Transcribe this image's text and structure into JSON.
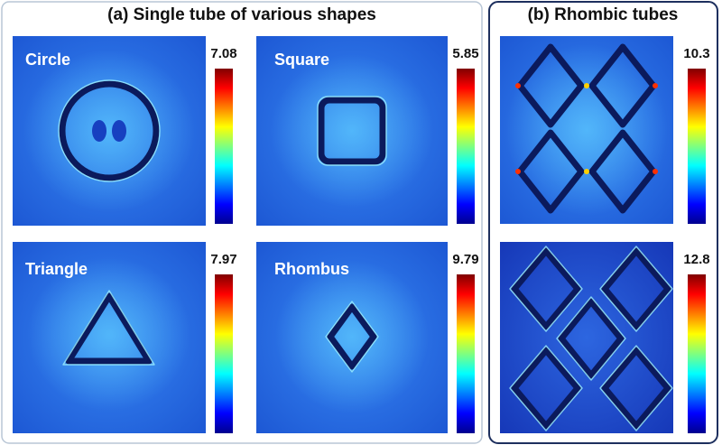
{
  "header": {
    "left_title": "(a) Single tube of various shapes",
    "right_title": "(b) Rhombic tubes"
  },
  "panels": [
    {
      "label": "Circle",
      "max": 7.08
    },
    {
      "label": "Square",
      "max": 5.85
    },
    {
      "label": "Triangle",
      "max": 7.97
    },
    {
      "label": "Rhombus",
      "max": 9.79
    },
    {
      "max": 10.3
    },
    {
      "max": 12.8
    }
  ]
}
